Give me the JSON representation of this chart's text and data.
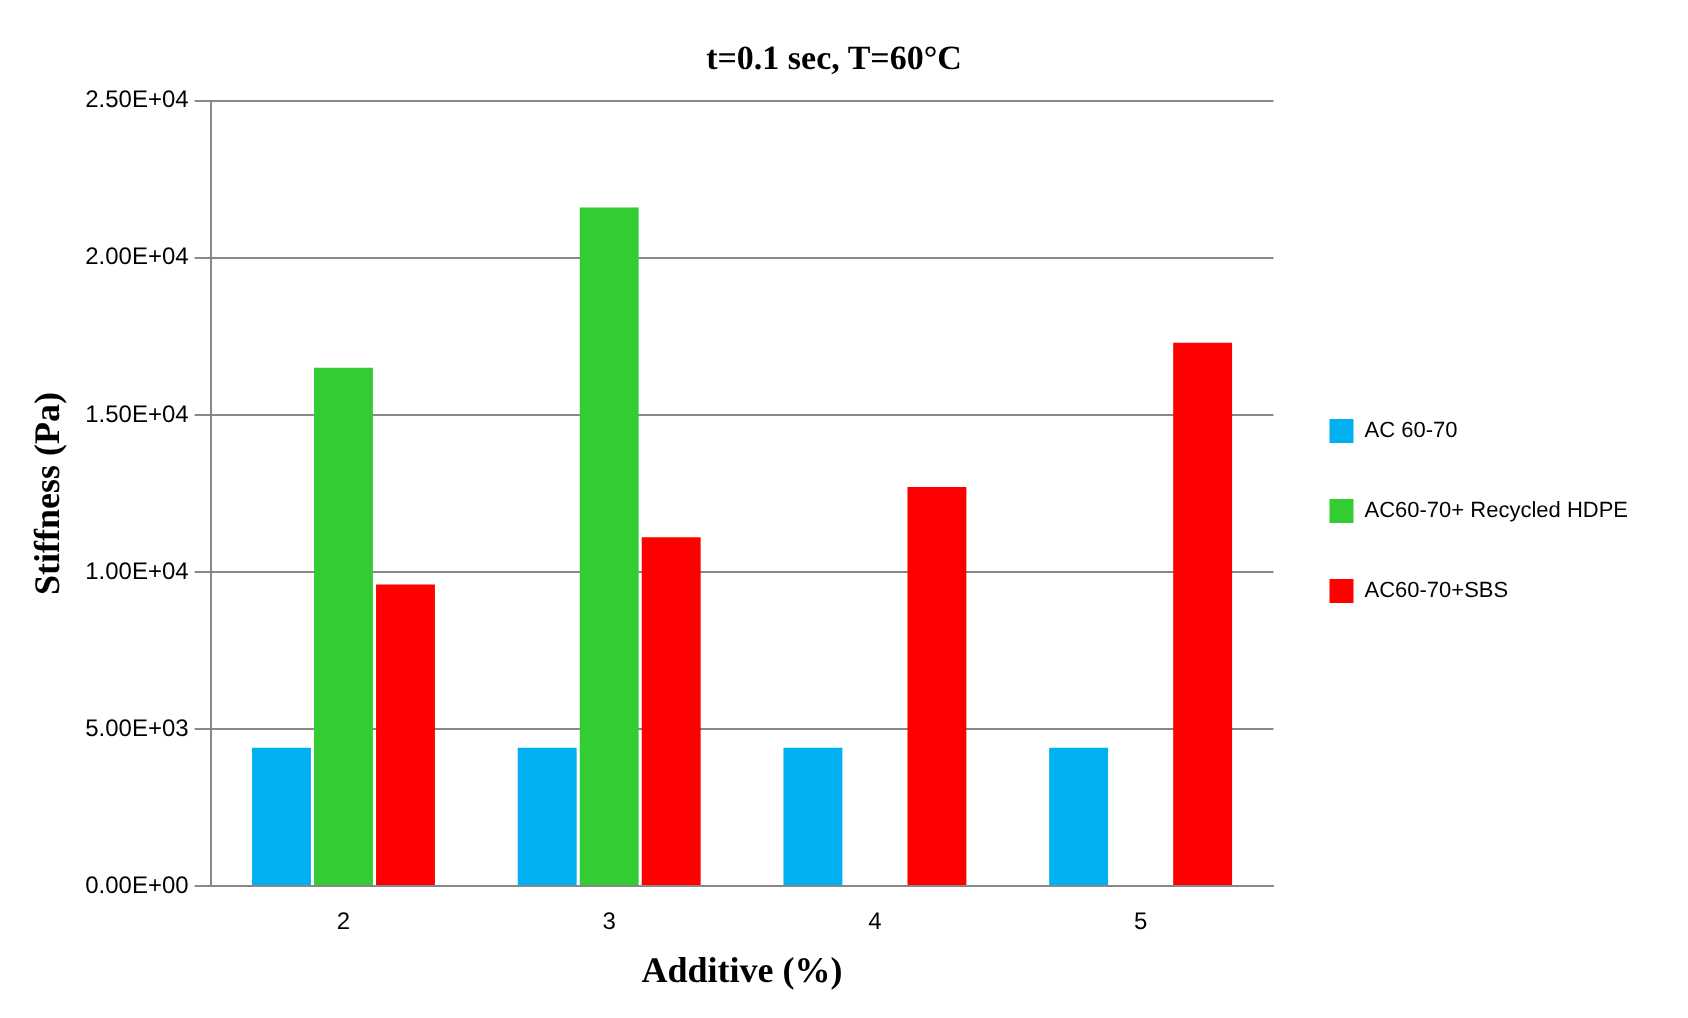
{
  "chart_data": {
    "type": "bar",
    "title": "t=0.1 sec, T=60°C",
    "xlabel": "Additive (%)",
    "ylabel": "Stiffness (Pa)",
    "categories": [
      "2",
      "3",
      "4",
      "5"
    ],
    "series": [
      {
        "name": "AC 60-70",
        "color": "#00b0f0",
        "values": [
          4400,
          4400,
          4400,
          4400
        ]
      },
      {
        "name": "AC60-70+ Recycled HDPE",
        "color": "#33cc33",
        "values": [
          16500,
          21600,
          null,
          null
        ]
      },
      {
        "name": "AC60-70+SBS",
        "color": "#ff0000",
        "values": [
          9600,
          11100,
          12700,
          17300
        ]
      }
    ],
    "ylim": [
      0,
      25000
    ],
    "yticks": [
      {
        "value": 0,
        "label": "0.00E+00"
      },
      {
        "value": 5000,
        "label": "5.00E+03"
      },
      {
        "value": 10000,
        "label": "1.00E+04"
      },
      {
        "value": 15000,
        "label": "1.50E+04"
      },
      {
        "value": 20000,
        "label": "2.00E+04"
      },
      {
        "value": 25000,
        "label": "2.50E+04"
      }
    ],
    "grid": "y",
    "legend": "right"
  }
}
